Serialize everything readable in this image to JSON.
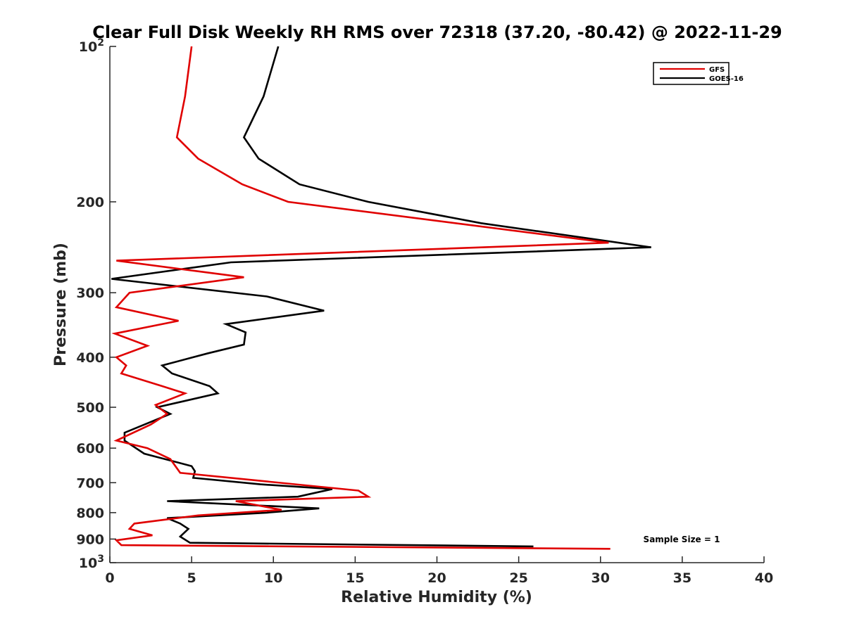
{
  "chart_data": {
    "type": "line",
    "title": "Clear Full Disk Weekly RH RMS over 72318 (37.20, -80.42) @ 2022-11-29",
    "xlabel": "Relative Humidity (%)",
    "ylabel": "Pressure (mb)",
    "xlim": [
      0,
      40
    ],
    "ylim": [
      100,
      1000
    ],
    "yscale": "log",
    "y_reversed": true,
    "grid": false,
    "x_ticks": [
      0,
      5,
      10,
      15,
      20,
      25,
      30,
      35,
      40
    ],
    "x_tick_labels": [
      "0",
      "5",
      "10",
      "15",
      "20",
      "25",
      "30",
      "35",
      "40"
    ],
    "y_ticks": [
      {
        "value": 100,
        "base": "10",
        "exp": "2"
      },
      {
        "value": 200,
        "label": "200"
      },
      {
        "value": 300,
        "label": "300"
      },
      {
        "value": 400,
        "label": "400"
      },
      {
        "value": 500,
        "label": "500"
      },
      {
        "value": 600,
        "label": "600"
      },
      {
        "value": 700,
        "label": "700"
      },
      {
        "value": 800,
        "label": "800"
      },
      {
        "value": 900,
        "label": "900"
      },
      {
        "value": 1000,
        "base": "10",
        "exp": "3"
      }
    ],
    "legend_position": "top-right",
    "annotation": "Sample Size = 1",
    "series": [
      {
        "name": "GFS",
        "color": "#e00000",
        "x": [
          5.0,
          4.6,
          4.1,
          5.4,
          8.1,
          10.9,
          30.5,
          0.4,
          8.2,
          1.2,
          0.4,
          4.2,
          0.3,
          2.3,
          0.4,
          1.0,
          0.7,
          3.2,
          4.6,
          2.8,
          3.5,
          2.5,
          0.4,
          2.3,
          3.7,
          4.3,
          15.2,
          15.8,
          7.7,
          10.5,
          5.4,
          1.5,
          1.2,
          2.6,
          0.4,
          0.7,
          30.6
        ],
        "y": [
          100,
          125,
          150,
          165,
          185,
          200,
          240,
          260,
          280,
          300,
          320,
          340,
          360,
          380,
          400,
          415,
          430,
          455,
          470,
          495,
          515,
          540,
          580,
          600,
          630,
          670,
          725,
          745,
          760,
          790,
          810,
          840,
          860,
          885,
          905,
          925,
          940
        ]
      },
      {
        "name": "GOES-16",
        "color": "#000000",
        "x": [
          10.3,
          9.4,
          8.2,
          9.1,
          11.6,
          15.8,
          22.7,
          33.1,
          7.4,
          0.1,
          9.6,
          13.1,
          7.1,
          8.3,
          8.2,
          6.0,
          3.2,
          3.8,
          6.1,
          6.6,
          2.9,
          3.7,
          0.9,
          0.9,
          2.1,
          5.0,
          5.2,
          5.1,
          9.2,
          13.6,
          11.5,
          3.5,
          12.8,
          9.6,
          3.5,
          4.3,
          4.8,
          4.3,
          4.9,
          25.9
        ],
        "y": [
          100,
          125,
          150,
          165,
          185,
          200,
          220,
          245,
          262,
          282,
          305,
          325,
          345,
          358,
          378,
          393,
          415,
          430,
          455,
          470,
          500,
          515,
          560,
          580,
          615,
          650,
          665,
          685,
          705,
          720,
          745,
          760,
          785,
          800,
          820,
          840,
          860,
          890,
          915,
          930
        ]
      }
    ]
  }
}
